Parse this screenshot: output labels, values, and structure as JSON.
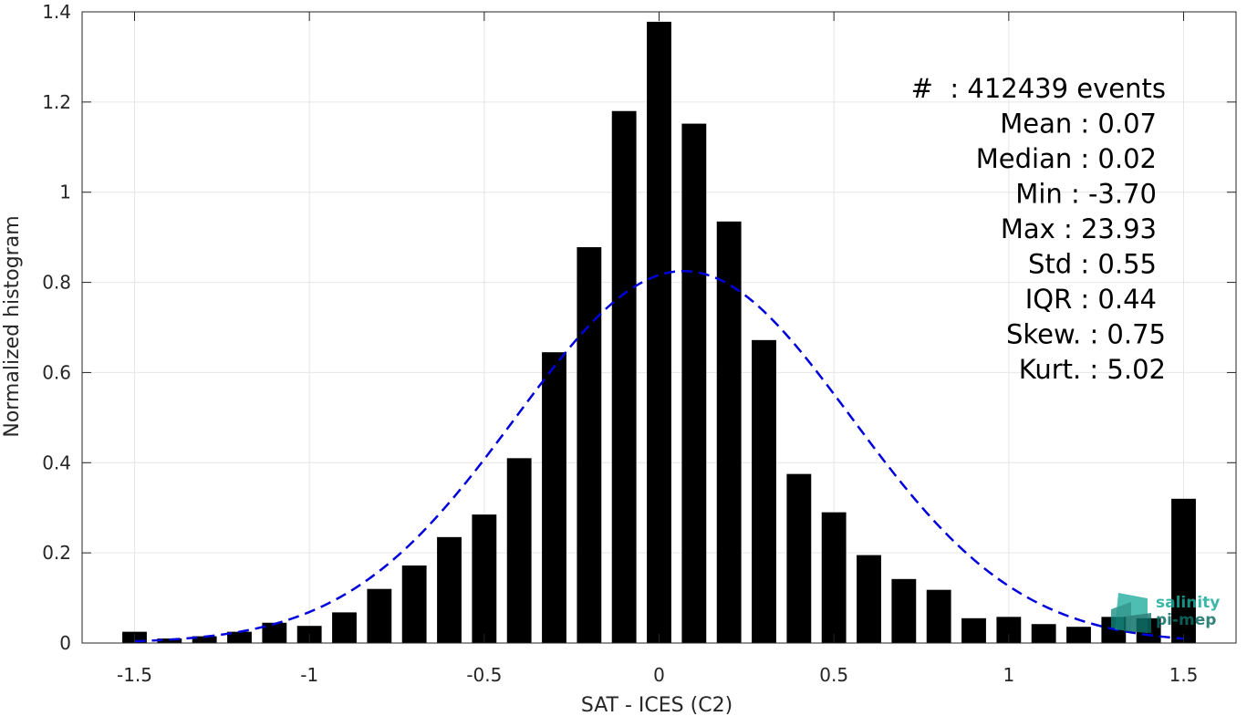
{
  "chart_data": {
    "type": "bar",
    "title": "",
    "xlabel": "SAT - ICES (C2)",
    "ylabel": "Normalized histogram",
    "xlim": [
      -1.65,
      1.65
    ],
    "ylim": [
      0,
      1.4
    ],
    "xticks": [
      -1.5,
      -1,
      -0.5,
      0,
      0.5,
      1,
      1.5
    ],
    "xtick_labels": [
      "-1.5",
      "-1",
      "-0.5",
      "0",
      "0.5",
      "1",
      "1.5"
    ],
    "yticks": [
      0,
      0.2,
      0.4,
      0.6,
      0.8,
      1,
      1.2,
      1.4
    ],
    "ytick_labels": [
      "0",
      "0.2",
      "0.4",
      "0.6",
      "0.8",
      "1",
      "1.2",
      "1.4"
    ],
    "grid": true,
    "bar_width": 0.07,
    "bar_color": "#000000",
    "x": [
      -1.5,
      -1.4,
      -1.3,
      -1.2,
      -1.1,
      -1.0,
      -0.9,
      -0.8,
      -0.7,
      -0.6,
      -0.5,
      -0.4,
      -0.3,
      -0.2,
      -0.1,
      0.0,
      0.1,
      0.2,
      0.3,
      0.4,
      0.5,
      0.6,
      0.7,
      0.8,
      0.9,
      1.0,
      1.1,
      1.2,
      1.3,
      1.4,
      1.5
    ],
    "values": [
      0.025,
      0.01,
      0.015,
      0.025,
      0.045,
      0.038,
      0.068,
      0.12,
      0.172,
      0.235,
      0.285,
      0.41,
      0.645,
      0.878,
      1.18,
      1.378,
      1.152,
      0.935,
      0.672,
      0.375,
      0.29,
      0.195,
      0.142,
      0.118,
      0.055,
      0.058,
      0.042,
      0.036,
      0.058,
      0.055,
      0.32
    ],
    "fit_curve": {
      "style": "dashed",
      "color": "#0000dd",
      "mean": 0.07,
      "std": 0.48,
      "peak": 0.825,
      "x_range": [
        -1.5,
        1.5
      ]
    },
    "annotations": [
      "#  : 412439 events",
      "Mean : 0.07",
      "Median : 0.02",
      "Min : -3.70",
      "Max : 23.93",
      "Std : 0.55",
      "IQR : 0.44",
      "Skew. : 0.75",
      "Kurt. : 5.02"
    ]
  },
  "logo": {
    "line1": "salinity",
    "line2": "pi-mep",
    "icon": "salinity-pimep-logo-icon",
    "color": "#1aab9b"
  }
}
